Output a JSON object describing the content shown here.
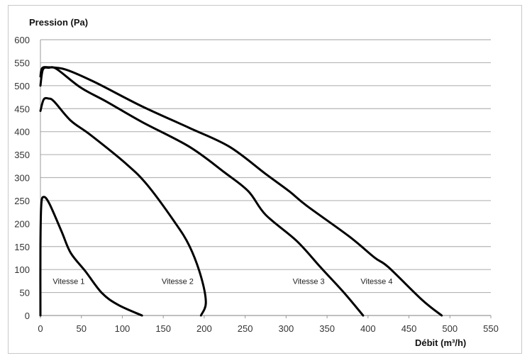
{
  "chart_data": {
    "type": "line",
    "title": "",
    "xlabel": "Débit (m³/h)",
    "ylabel": "Pression (Pa)",
    "xlim": [
      0,
      550
    ],
    "ylim": [
      0,
      600
    ],
    "x_ticks": [
      0,
      50,
      100,
      150,
      200,
      250,
      300,
      350,
      400,
      450,
      500,
      550
    ],
    "y_ticks": [
      0,
      50,
      100,
      150,
      200,
      250,
      300,
      350,
      400,
      450,
      500,
      550,
      600
    ],
    "grid": "horizontal",
    "line_color": "#000000",
    "series": [
      {
        "name": "Vitesse 1",
        "points": [
          [
            0,
            0
          ],
          [
            0,
            150
          ],
          [
            1,
            240
          ],
          [
            4,
            258
          ],
          [
            11,
            243
          ],
          [
            26,
            182
          ],
          [
            37,
            136
          ],
          [
            55,
            96
          ],
          [
            75,
            49
          ],
          [
            95,
            23
          ],
          [
            124,
            0
          ]
        ]
      },
      {
        "name": "Vitesse 2",
        "points": [
          [
            0,
            445
          ],
          [
            4,
            470
          ],
          [
            10,
            472
          ],
          [
            17,
            465
          ],
          [
            37,
            424
          ],
          [
            61,
            393
          ],
          [
            104,
            331
          ],
          [
            130,
            285
          ],
          [
            164,
            203
          ],
          [
            182,
            151
          ],
          [
            196,
            85
          ],
          [
            202,
            28
          ],
          [
            196,
            0
          ]
        ]
      },
      {
        "name": "Vitesse 3",
        "points": [
          [
            0,
            500
          ],
          [
            3,
            535
          ],
          [
            10,
            539
          ],
          [
            20,
            536
          ],
          [
            49,
            496
          ],
          [
            81,
            465
          ],
          [
            124,
            421
          ],
          [
            182,
            367
          ],
          [
            225,
            311
          ],
          [
            254,
            270
          ],
          [
            275,
            219
          ],
          [
            313,
            162
          ],
          [
            342,
            105
          ],
          [
            371,
            49
          ],
          [
            394,
            0
          ]
        ]
      },
      {
        "name": "Vitesse 4",
        "points": [
          [
            0,
            520
          ],
          [
            2,
            538
          ],
          [
            10,
            540
          ],
          [
            31,
            535
          ],
          [
            66,
            508
          ],
          [
            124,
            455
          ],
          [
            182,
            408
          ],
          [
            231,
            367
          ],
          [
            275,
            308
          ],
          [
            304,
            270
          ],
          [
            325,
            239
          ],
          [
            377,
            172
          ],
          [
            408,
            126
          ],
          [
            425,
            105
          ],
          [
            466,
            34
          ],
          [
            490,
            0
          ]
        ]
      }
    ]
  }
}
